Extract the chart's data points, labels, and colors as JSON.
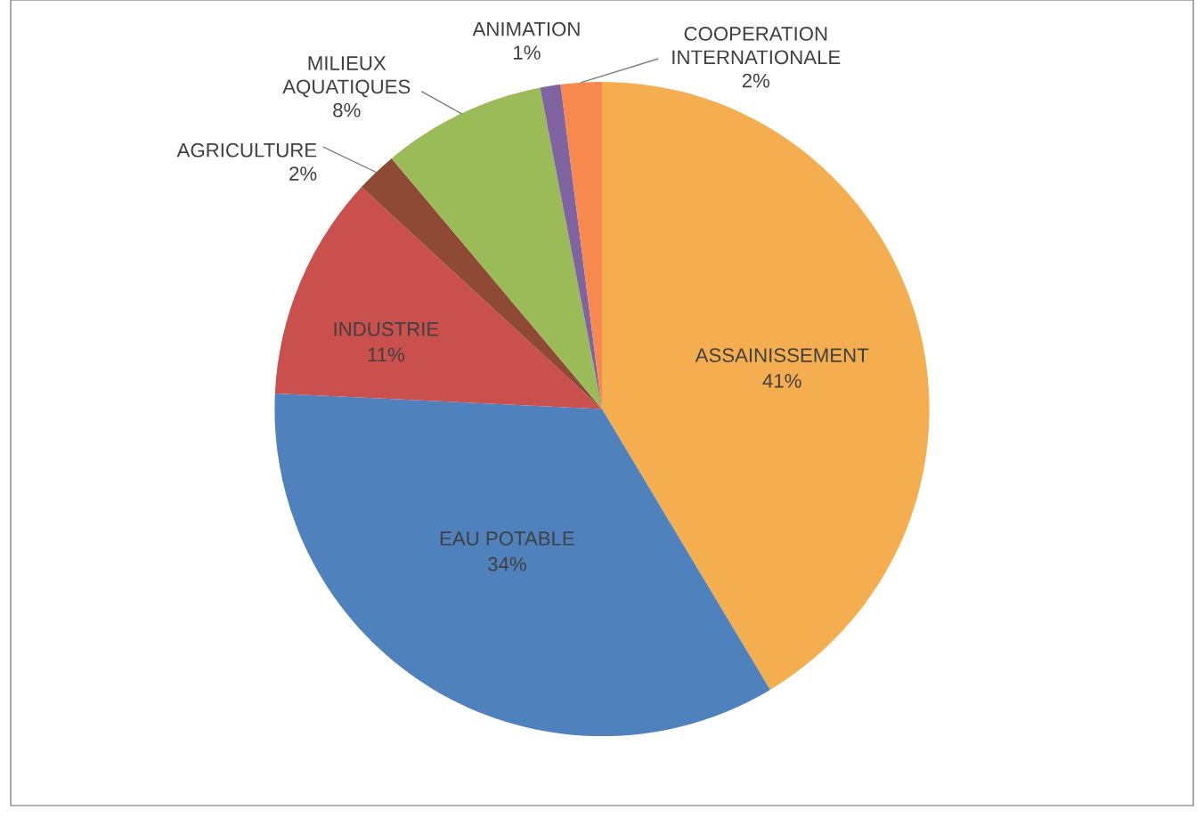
{
  "chart_data": {
    "type": "pie",
    "categories": [
      "ASSAINISSEMENT",
      "EAU POTABLE",
      "INDUSTRIE",
      "AGRICULTURE",
      "MILIEUX AQUATIQUES",
      "ANIMATION",
      "COOPERATION INTERNATIONALE"
    ],
    "values": [
      41,
      34,
      11,
      2,
      8,
      1,
      2
    ],
    "value_labels": [
      "41%",
      "34%",
      "11%",
      "2%",
      "8%",
      "1%",
      "2%"
    ],
    "colors": [
      "#f4ad4f",
      "#4f81bd",
      "#c9504d",
      "#8e4a35",
      "#9bbb59",
      "#8064a2",
      "#f7894f"
    ]
  }
}
